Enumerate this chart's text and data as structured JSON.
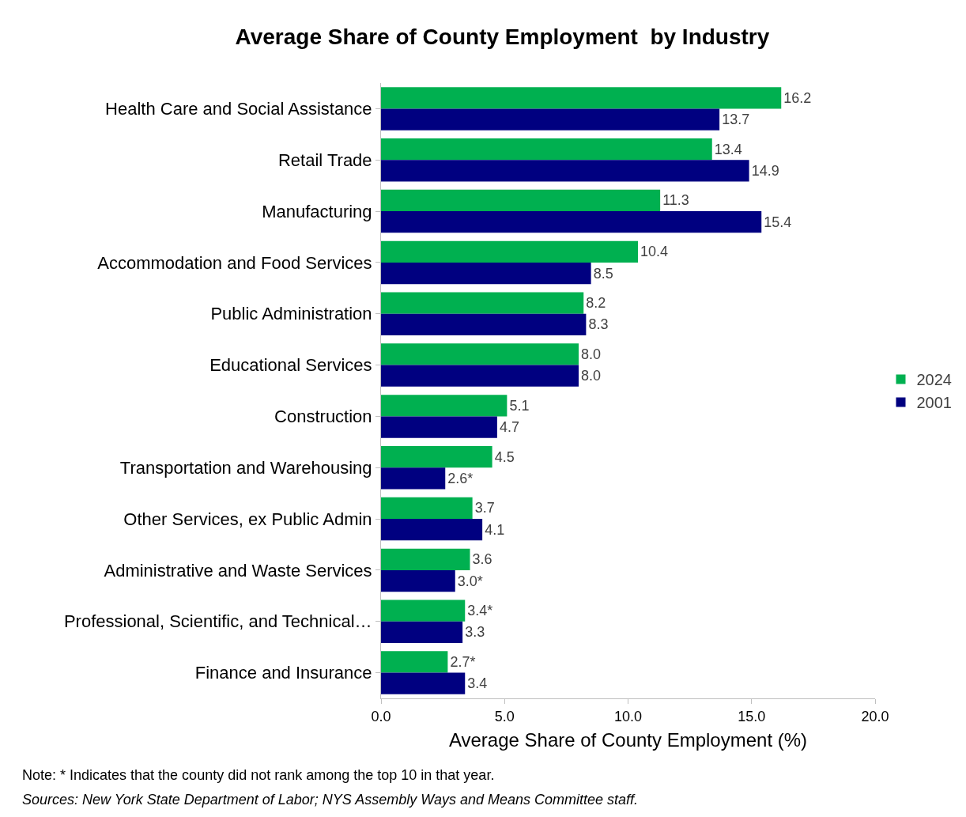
{
  "chart_data": {
    "type": "bar",
    "orientation": "horizontal",
    "title": "Average Share of County Employment  by Industry",
    "xlabel": "Average Share of County Employment (%)",
    "categories": [
      "Health Care and Social Assistance",
      "Retail Trade",
      "Manufacturing",
      "Accommodation and Food Services",
      "Public Administration",
      "Educational Services",
      "Construction",
      "Transportation and Warehousing",
      "Other Services, ex Public Admin",
      "Administrative and Waste Services",
      "Professional, Scientific, and Technical…",
      "Finance and Insurance"
    ],
    "series": [
      {
        "name": "2024",
        "color": "#00b050",
        "values": [
          16.2,
          13.4,
          11.3,
          10.4,
          8.2,
          8.0,
          5.1,
          4.5,
          3.7,
          3.6,
          3.4,
          2.7
        ],
        "value_labels": [
          "16.2",
          "13.4",
          "11.3",
          "10.4",
          "8.2",
          "8.0",
          "5.1",
          "4.5",
          "3.7",
          "3.6",
          "3.4*",
          "2.7*"
        ]
      },
      {
        "name": "2001",
        "color": "#000080",
        "values": [
          13.7,
          14.9,
          15.4,
          8.5,
          8.3,
          8.0,
          4.7,
          2.6,
          4.1,
          3.0,
          3.3,
          3.4
        ],
        "value_labels": [
          "13.7",
          "14.9",
          "15.4",
          "8.5",
          "8.3",
          "8.0",
          "4.7",
          "2.6*",
          "4.1",
          "3.0*",
          "3.3",
          "3.4"
        ]
      }
    ],
    "xlim": [
      0,
      20
    ],
    "xticks": [
      {
        "value": 0,
        "label": "0.0"
      },
      {
        "value": 5,
        "label": "5.0"
      },
      {
        "value": 10,
        "label": "10.0"
      },
      {
        "value": 15,
        "label": "15.0"
      },
      {
        "value": 20,
        "label": "20.0"
      }
    ],
    "grid": false,
    "legend": "right",
    "annotations": [
      "Note: * Indicates that the county did not rank among the top 10 in that year.",
      "Sources: New York State Department of Labor; NYS Assembly Ways and Means Committee staff."
    ]
  }
}
